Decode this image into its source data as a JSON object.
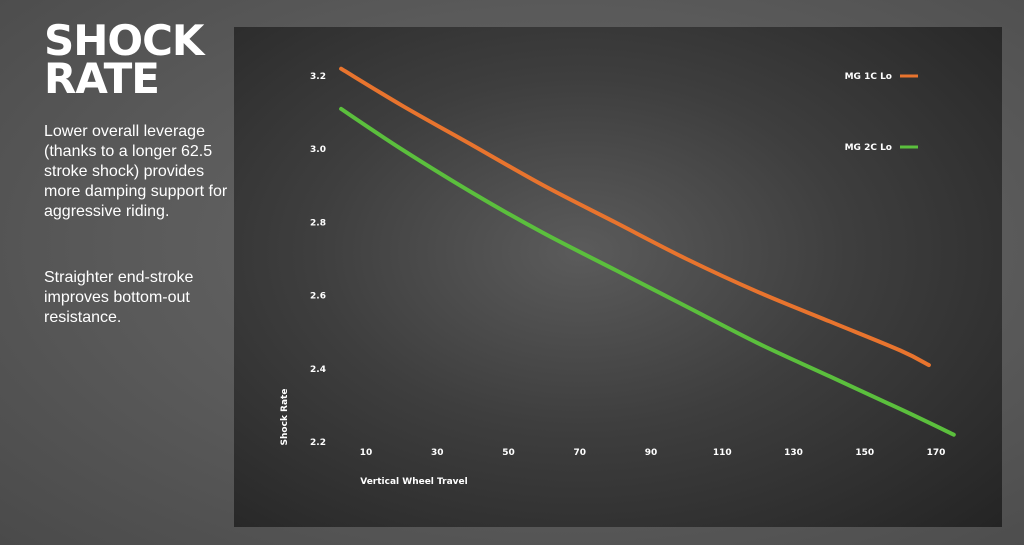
{
  "heading": {
    "line1": "SHOCK",
    "line2": "RATE"
  },
  "description": {
    "paragraph1": "Lower overall leverage (thanks to a longer 62.5 stroke shock) provides more damping support for aggressive riding.",
    "paragraph2": "Straighter end-stroke improves bottom-out resistance."
  },
  "chart_data": {
    "type": "line",
    "xlabel": "Vertical Wheel Travel",
    "ylabel": "Shock Rate",
    "x_ticks": [
      10,
      30,
      50,
      70,
      90,
      110,
      130,
      150,
      170
    ],
    "y_ticks": [
      2.2,
      2.4,
      2.6,
      2.8,
      3.0,
      3.2
    ],
    "y_tick_labels": [
      "2.2",
      "2.4",
      "2.6",
      "2.8",
      "3.0",
      "3.2"
    ],
    "xlim": [
      2,
      180
    ],
    "ylim": [
      2.2,
      3.2
    ],
    "grid": false,
    "legend_position": "top-right",
    "series": [
      {
        "name": "MG 1C Lo",
        "color": "#e8742e",
        "x": [
          3,
          20,
          40,
          60,
          80,
          100,
          120,
          140,
          160,
          168
        ],
        "y": [
          3.22,
          3.12,
          3.01,
          2.9,
          2.8,
          2.7,
          2.61,
          2.53,
          2.45,
          2.41
        ]
      },
      {
        "name": "MG 2C Lo",
        "color": "#5bbf3d",
        "x": [
          3,
          20,
          40,
          60,
          80,
          100,
          120,
          140,
          160,
          175
        ],
        "y": [
          3.11,
          3.0,
          2.88,
          2.77,
          2.67,
          2.57,
          2.47,
          2.38,
          2.29,
          2.22
        ]
      }
    ]
  }
}
